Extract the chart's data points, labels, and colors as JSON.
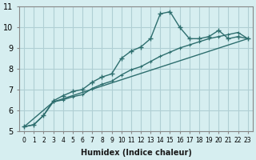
{
  "xlabel": "Humidex (Indice chaleur)",
  "ylabel": "",
  "bg_color": "#d6eef0",
  "grid_color": "#b0cfd4",
  "line_color": "#2d6e6e",
  "xlim": [
    -0.5,
    23.5
  ],
  "ylim": [
    5,
    11
  ],
  "yticks": [
    5,
    6,
    7,
    8,
    9,
    10,
    11
  ],
  "xtick_labels": [
    "0",
    "1",
    "2",
    "3",
    "4",
    "5",
    "6",
    "7",
    "8",
    "9",
    "10",
    "11",
    "12",
    "13",
    "14",
    "15",
    "16",
    "17",
    "18",
    "19",
    "20",
    "21",
    "22",
    "23"
  ],
  "line1_x": [
    0,
    1,
    2,
    3,
    4,
    5,
    6,
    7,
    8,
    9,
    10,
    11,
    12,
    13,
    14,
    15,
    16,
    17,
    18,
    19,
    20,
    21,
    22,
    23
  ],
  "line1_y": [
    5.2,
    5.3,
    5.75,
    6.45,
    6.7,
    6.9,
    7.0,
    7.35,
    7.6,
    7.75,
    8.5,
    8.85,
    9.05,
    9.45,
    10.65,
    10.75,
    10.0,
    9.45,
    9.45,
    9.55,
    9.85,
    9.45,
    9.55,
    9.45
  ],
  "line2_x": [
    0,
    1,
    2,
    3,
    4,
    5,
    6,
    7,
    8,
    9,
    10,
    11,
    12,
    13,
    14,
    15,
    16,
    17,
    18,
    19,
    20,
    21,
    22,
    23
  ],
  "line2_y": [
    5.2,
    5.3,
    5.75,
    6.4,
    6.5,
    6.65,
    6.75,
    7.05,
    7.25,
    7.4,
    7.7,
    7.95,
    8.1,
    8.35,
    8.6,
    8.8,
    9.0,
    9.15,
    9.3,
    9.45,
    9.55,
    9.65,
    9.75,
    9.45
  ],
  "line3_x": [
    0,
    3,
    23
  ],
  "line3_y": [
    5.2,
    6.4,
    9.45
  ]
}
